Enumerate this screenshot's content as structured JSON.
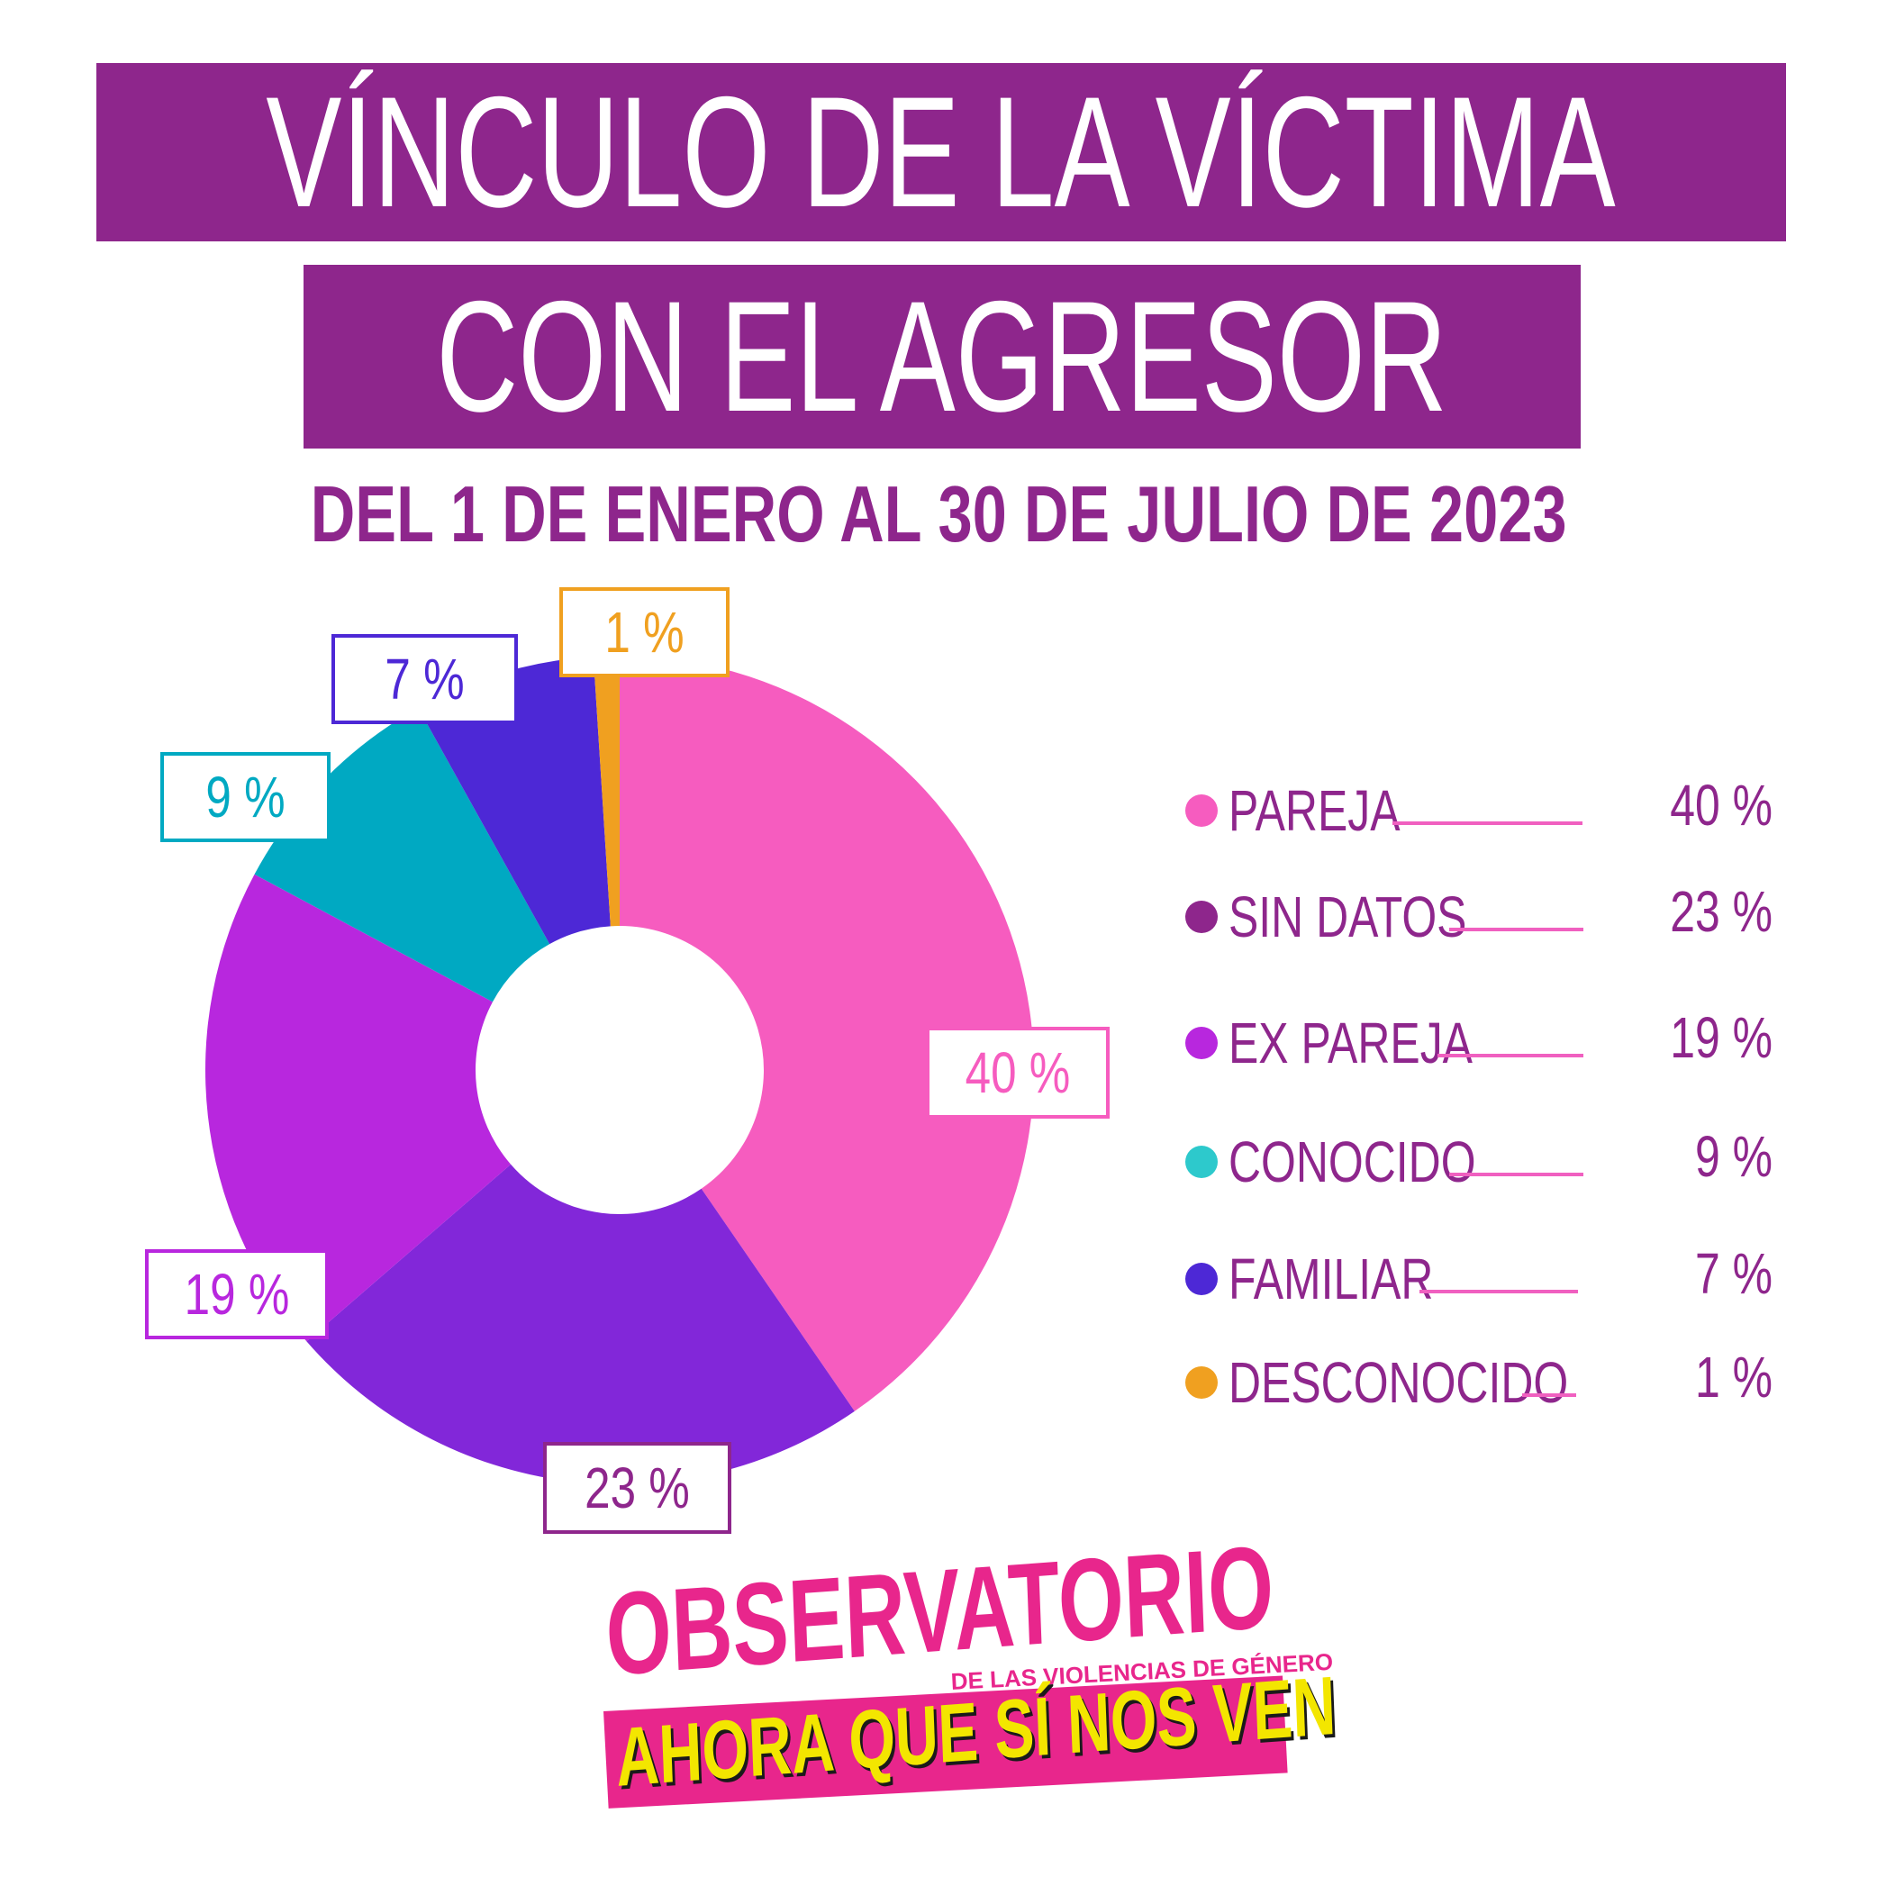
{
  "title": {
    "line1": "VÍNCULO DE LA VÍCTIMA",
    "line2": "CON EL AGRESOR"
  },
  "subtitle": "DEL 1 DE ENERO AL 30 DE JULIO DE 2023",
  "chart_data": {
    "type": "pie",
    "donut": true,
    "categories": [
      "PAREJA",
      "SIN DATOS",
      "EX PAREJA",
      "CONOCIDO",
      "FAMILIAR",
      "DESCONOCIDO"
    ],
    "values": [
      40,
      23,
      19,
      9,
      7,
      1
    ],
    "unit": "%",
    "labels": [
      "40 %",
      "23 %",
      "19 %",
      "9 %",
      "7 %",
      "1 %"
    ],
    "colors": [
      "#f65cbf",
      "#8227d9",
      "#b827de",
      "#00a9c2",
      "#4d28d6",
      "#f0a020"
    ],
    "label_colors": [
      "#f65cbf",
      "#8e268c",
      "#b827de",
      "#00a9c2",
      "#4d28d6",
      "#f0a020"
    ],
    "legend_dot_colors": [
      "#f65cbf",
      "#8e268c",
      "#b827de",
      "#2dc9cc",
      "#4d28d6",
      "#f0a020"
    ],
    "legend_placement": "right"
  },
  "legend": [
    {
      "label": "PAREJA",
      "value": "40 %"
    },
    {
      "label": "SIN DATOS",
      "value": "23 %"
    },
    {
      "label": "EX PAREJA",
      "value": "19 %"
    },
    {
      "label": "CONOCIDO",
      "value": "9 %"
    },
    {
      "label": "FAMILIAR",
      "value": "7 %"
    },
    {
      "label": "DESCONOCIDO",
      "value": "1 %"
    }
  ],
  "logo": {
    "main": "OBSERVATORIO",
    "sub": "DE LAS VIOLENCIAS DE GÉNERO",
    "tagline": "AHORA QUE SÍ NOS VEN"
  }
}
